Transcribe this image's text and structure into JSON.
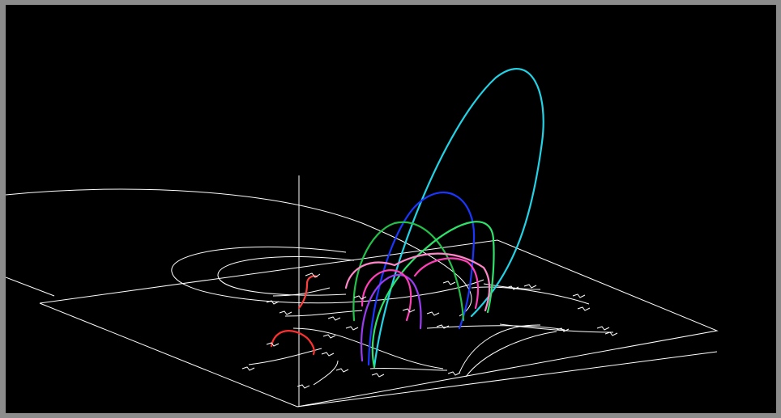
{
  "scene": {
    "background": "#000000",
    "frame_color": "#8c8c8c",
    "wire_color": "#ffffff"
  },
  "loops": [
    {
      "name": "cyan-loop",
      "color": "#22d3e6"
    },
    {
      "name": "blue-loop",
      "color": "#1a36ff"
    },
    {
      "name": "green-loop-large",
      "color": "#23c04a"
    },
    {
      "name": "green-loop-right",
      "color": "#2ee36a"
    },
    {
      "name": "purple-loop",
      "color": "#9a3cf0"
    },
    {
      "name": "magenta-loop",
      "color": "#ff3fb8"
    },
    {
      "name": "pink-loop",
      "color": "#ff86c8"
    },
    {
      "name": "red-loop-small",
      "color": "#ff3030"
    },
    {
      "name": "red-loop-left",
      "color": "#ff4040"
    }
  ]
}
